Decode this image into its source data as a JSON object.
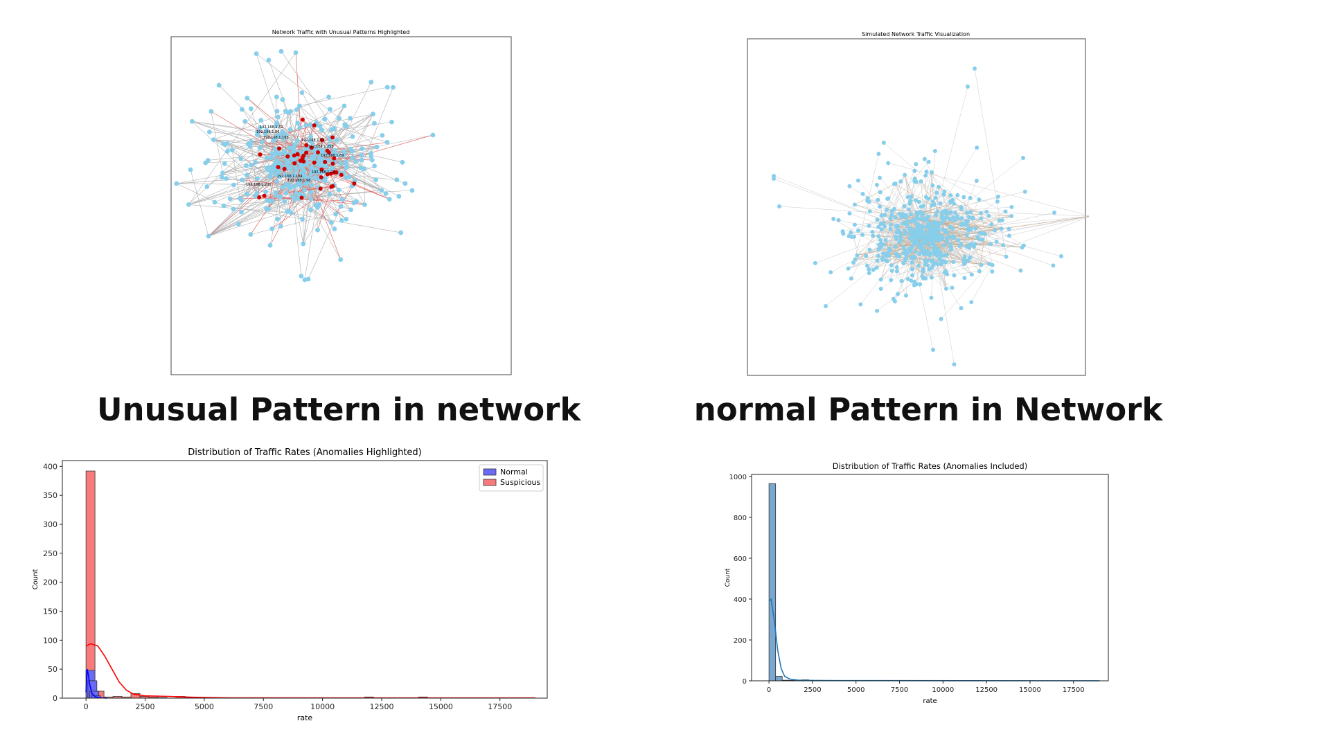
{
  "captions": {
    "left": "Unusual Pattern in network",
    "right": "normal Pattern in Network"
  },
  "colors": {
    "node": "#87ceeb",
    "edge": "#b0b0b0",
    "suspicious_node": "#cc0000",
    "suspicious_edge": "#e06666",
    "normal_bar": "#6a6af5",
    "suspicious_bar": "#f77b7b",
    "single_bar": "#7aa7cf",
    "kde_red": "#ff0000",
    "kde_blue": "#0000ff",
    "kde_single": "#1f77b4"
  },
  "chart_data": [
    {
      "type": "network",
      "title": "Network Traffic with Unusual Patterns Highlighted",
      "node_labels_visible": [
        "192.168.1.32",
        "192.168.1.86",
        "192.168.1.193",
        "192.168.1.35",
        "192.168.1.253",
        "192.168.1.69",
        "192.168.1.104",
        "192.168.1.96",
        "192.168.1.29",
        "192.168.1.231"
      ]
    },
    {
      "type": "network",
      "title": "Simulated Network Traffic Visualization"
    },
    {
      "type": "bar",
      "title": "Distribution of Traffic Rates (Anomalies Highlighted)",
      "xlabel": "rate",
      "ylabel": "Count",
      "xlim": [
        -1000,
        19500
      ],
      "ylim": [
        0,
        410
      ],
      "xticks": [
        0,
        2500,
        5000,
        7500,
        10000,
        12500,
        15000,
        17500
      ],
      "yticks": [
        0,
        50,
        100,
        150,
        200,
        250,
        300,
        350,
        400
      ],
      "bin_width": 380,
      "legend_position": "top-right",
      "series": [
        {
          "name": "Normal",
          "bins": [
            [
              0,
              48
            ],
            [
              80,
              30
            ],
            [
              160,
              12
            ],
            [
              240,
              4
            ]
          ]
        },
        {
          "name": "Suspicious",
          "bins": [
            [
              0,
              392
            ],
            [
              380,
              12
            ],
            [
              760,
              2
            ],
            [
              1140,
              3
            ],
            [
              1520,
              2
            ],
            [
              1900,
              8
            ],
            [
              2280,
              3
            ],
            [
              2660,
              2
            ],
            [
              3040,
              1
            ],
            [
              3800,
              3
            ],
            [
              4180,
              1
            ],
            [
              11780,
              2
            ],
            [
              14060,
              2
            ]
          ]
        }
      ],
      "kde": {
        "suspicious": [
          [
            0,
            90
          ],
          [
            200,
            94
          ],
          [
            500,
            90
          ],
          [
            800,
            72
          ],
          [
            1100,
            50
          ],
          [
            1400,
            28
          ],
          [
            1700,
            14
          ],
          [
            2000,
            7
          ],
          [
            2500,
            4
          ],
          [
            3500,
            3
          ],
          [
            4500,
            1.5
          ],
          [
            6000,
            0.5
          ],
          [
            19000,
            0.3
          ]
        ],
        "normal": [
          [
            0,
            10
          ],
          [
            50,
            50
          ],
          [
            100,
            40
          ],
          [
            150,
            25
          ],
          [
            250,
            8
          ],
          [
            400,
            2
          ],
          [
            600,
            0.5
          ],
          [
            900,
            0
          ]
        ]
      }
    },
    {
      "type": "bar",
      "title": "Distribution of Traffic Rates (Anomalies Included)",
      "xlabel": "rate",
      "ylabel": "Count",
      "xlim": [
        -1000,
        19500
      ],
      "ylim": [
        0,
        1010
      ],
      "xticks": [
        0,
        2500,
        5000,
        7500,
        10000,
        12500,
        15000,
        17500
      ],
      "yticks": [
        0,
        200,
        400,
        600,
        800,
        1000
      ],
      "bin_width": 380,
      "bins": [
        [
          0,
          965
        ],
        [
          380,
          22
        ],
        [
          760,
          3
        ],
        [
          1140,
          2
        ],
        [
          1900,
          5
        ],
        [
          2280,
          2
        ],
        [
          11780,
          1
        ],
        [
          14060,
          1
        ]
      ],
      "kde": [
        [
          0,
          390
        ],
        [
          120,
          400
        ],
        [
          300,
          300
        ],
        [
          500,
          150
        ],
        [
          700,
          60
        ],
        [
          900,
          22
        ],
        [
          1200,
          8
        ],
        [
          1700,
          3
        ],
        [
          2500,
          2
        ],
        [
          4000,
          1
        ],
        [
          19000,
          0.5
        ]
      ]
    }
  ]
}
